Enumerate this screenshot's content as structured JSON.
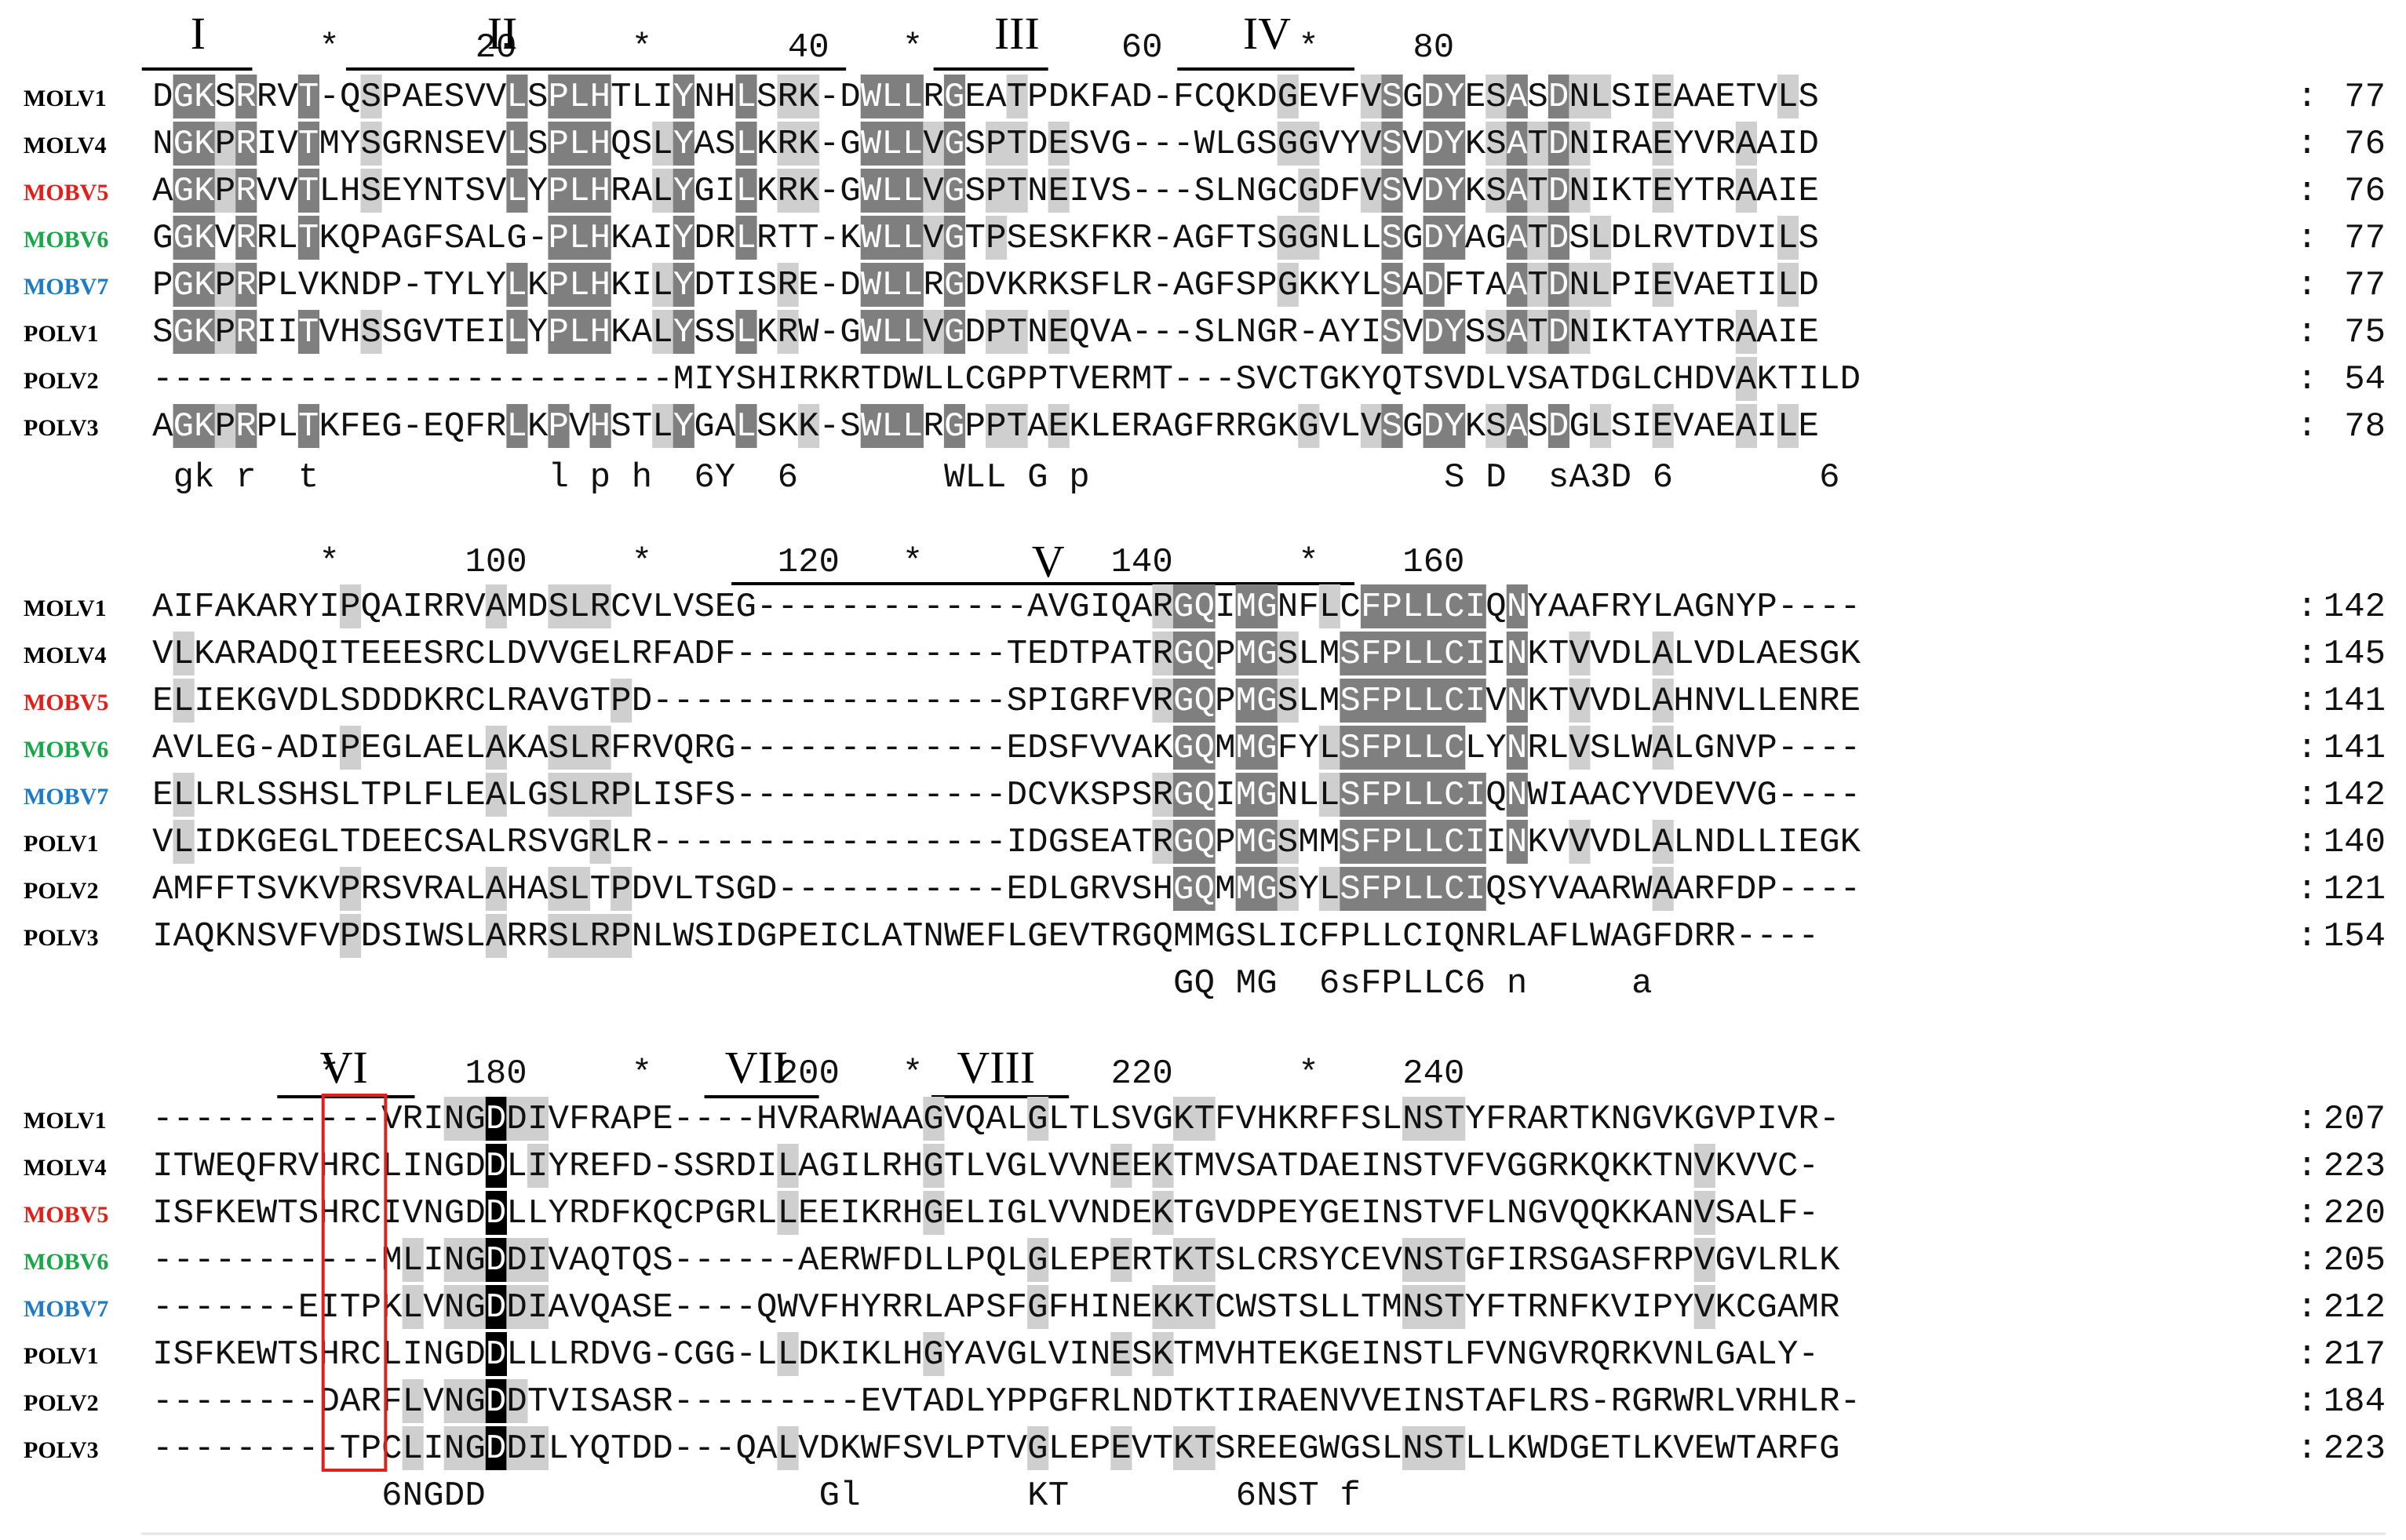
{
  "colors": {
    "text": "#111111",
    "black_bg": "#000000",
    "black_fg": "#ffffff",
    "dark_bg": "#7f7f7f",
    "dark_fg": "#ffffff",
    "light_bg": "#cfcfcf",
    "light_fg": "#111111",
    "highlight_box": "#e0201b",
    "name_colors": {
      "MOLV1": "#000000",
      "MOLV4": "#000000",
      "MOBV5": "#e0201b",
      "MOBV6": "#1aa64a",
      "MOBV7": "#1e7bc4",
      "POLV1": "#000000",
      "POLV2": "#000000",
      "POLV3": "#000000"
    }
  },
  "blocks": [
    {
      "ruler": [
        "*",
        "20",
        "*",
        "40",
        "*",
        "60",
        "*",
        "80"
      ],
      "motifs": [
        {
          "label": "I"
        },
        {
          "label": "II"
        },
        {
          "label": "III"
        },
        {
          "label": "IV"
        }
      ],
      "rows": [
        {
          "name": "MOLV1",
          "seq": "DGKSRRVT-QSPAESVVLSPLHTLIYNHLSRK-DWLLRGEATPDKFAD-FCQKDGEVFVSGDYESASDNLSIEAAETVLS",
          "count": "77"
        },
        {
          "name": "MOLV4",
          "seq": "NGKPRIVTMYSGRNSEVLSPLHQSLYASLKRK-GWLLVGSPTDESVG---WLGSGGVYVSVDYKSATDNIRAEYVRAAID",
          "count": "76"
        },
        {
          "name": "MOBV5",
          "seq": "AGKPRVVTLHSEYNTSVLYPLHRALYGILKRK-GWLLVGSPTNEIVS---SLNGCGDFVSVDYKSATDNIKTEYTRAAIE",
          "count": "76"
        },
        {
          "name": "MOBV6",
          "seq": "GGKVRRLTKQPAGFSALG-PLHKAIYDRLRTT-KWLLVGTPSESKFKR-AGFTSGGNLLSGDYAGATDSLDLRVTDVILS",
          "count": "77"
        },
        {
          "name": "MOBV7",
          "seq": "PGKPRPLVKNDP-TYLYLKPLHKILYDTISRE-DWLLRGDVKRKSFLR-AGFSPGKKYLSADFTAATDNLPIEVAETILD",
          "count": "77"
        },
        {
          "name": "POLV1",
          "seq": "SGKPRIITVHSSGVTEILYPLHKALYSSLKRW-GWLLVGDPTNEQVA---SLNGR-AYISVDYSSATDNIKTAYTRAAIE",
          "count": "75"
        },
        {
          "name": "POLV2",
          "seq": "-------------------------MIYSHIRKRTDWLLCGPPTVERMT---SVCTGKYQTSVDLVSATDGLCHDVAKTILD",
          "count": "54"
        },
        {
          "name": "POLV3",
          "seq": "AGKPRPLTKFEG-EQFRLKPVHSTLYGALSKK-SWLLRGPPTAEKLERAGFRRGKGVLVSGDYKSASDGLSIEVAEAILE",
          "count": "78"
        }
      ],
      "consensus": " gk r  t           l p h  6Y  6       WLL G p                 S D  sA3D 6       6 "
    },
    {
      "ruler": [
        "*",
        "100",
        "*",
        "120",
        "*",
        "140",
        "*",
        "160"
      ],
      "motifs": [
        {
          "label": "V"
        }
      ],
      "rows": [
        {
          "name": "MOLV1",
          "seq": "AIFAKARYIPQAIRRVAMDSLRCVLVSEG-------------AVGIQARGQIMGNFLCFPLLCIQNYAAFRYLAGNYP----",
          "count": "142"
        },
        {
          "name": "MOLV4",
          "seq": "VLKARADQITEEESRCLDVVGELRFADF-------------TEDTPATRGQPMGSLMSFPLLCIINKTVVDLALVDLAESGK",
          "count": "145"
        },
        {
          "name": "MOBV5",
          "seq": "ELIEKGVDLSDDDKRCLRAVGTPD-----------------SPIGRFVRGQPMGSLMSFPLLCIVNKTVVDLAHNVLLENRE",
          "count": "141"
        },
        {
          "name": "MOBV6",
          "seq": "AVLEG-ADIPEGLAELAKASLRFRVQRG-------------EDSFVVAKGQMMGFYLSFPLLCLYNRLVSLWALGNVP----",
          "count": "141"
        },
        {
          "name": "MOBV7",
          "seq": "ELLRLSSHSLTPLFLEALGSLRPLISFS-------------DCVKSPSRGQIMGNLLSFPLLCIQNWIAACYVDEVVG----",
          "count": "142"
        },
        {
          "name": "POLV1",
          "seq": "VLIDKGEGLTDEECSALRSVGRLR-----------------IDGSEATRGQPMGSMMSFPLLCIINKVVVDLALNDLLIEGK",
          "count": "140"
        },
        {
          "name": "POLV2",
          "seq": "AMFFTSVKVPRSVRALAHASLTPDVLTSGD-----------EDLGRVSHGQMMGSYLSFPLLCIQSYVAARWAARFDP----",
          "count": "121"
        },
        {
          "name": "POLV3",
          "seq": "IAQKNSVFVPDSIWSLARRSLRPNLWSIDGPEICLATNWEFLGEVTRGQMMGSLICFPLLCIQNRLAFLWAGFDRR----",
          "count": "154"
        }
      ],
      "consensus": "                                                 GQ MG  6sFPLLC6 n     a         "
    },
    {
      "ruler": [
        "*",
        "180",
        "*",
        "200",
        "*",
        "220",
        "*",
        "240"
      ],
      "motifs": [
        {
          "label": "VI"
        },
        {
          "label": "VII"
        },
        {
          "label": "VIII"
        }
      ],
      "rows": [
        {
          "name": "MOLV1",
          "seq": "-----------VRINGDDIVFRAPE----HVRARWAAGVQALGLTLSVGKTFVHKRFFSLNSTYFRARTKNGVKGVPIVR-",
          "count": "207"
        },
        {
          "name": "MOLV4",
          "seq": "ITWEQFRVHRCLINGDDLIYREFD-SSRDILAGILRHGTLVGLVVNEEKTMVSATDAEINSTVFVGGRKQKKTNVKVVC-",
          "count": "223"
        },
        {
          "name": "MOBV5",
          "seq": "ISFKEWTSHRCIVNGDDLLYRDFKQCPGRLLEEIKRHGELIGLVVNDEKTGVDPEYGEINSTVFLNGVQQKKANVSALF-",
          "count": "220"
        },
        {
          "name": "MOBV6",
          "seq": "-----------MLINGDDIVAQTQS------AERWFDLLPQLGLEPERTKTSLCRSYCEVNSTGFIRSGASFRPVGVLRLK",
          "count": "205"
        },
        {
          "name": "MOBV7",
          "seq": "-------EITPKLVNGDDIAVQASE----QWVFHYRRLAPSFGFHINEKKTCWSTSLLTMNSTYFTRNFKVIPYVKCGAMR",
          "count": "212"
        },
        {
          "name": "POLV1",
          "seq": "ISFKEWTSHRCLINGDDLLLRDVG-CGG-LLDKIKLHGYAVGLVINESKTMVHTEKGEINSTLFVNGVRQRKVNLGALY-",
          "count": "217"
        },
        {
          "name": "POLV2",
          "seq": "--------DARFLVNGDDTVISASR---------EVTADLYPPGFRLNDTKTIRAENVVEINSTAFLRS-RGRWRLVRHLR-",
          "count": "184"
        },
        {
          "name": "POLV3",
          "seq": "---------TPCLINGDDILYQTDD---QALVDKWFSVLPTVGLEPEVTKTSREEGWGSLNSTLLKWDGETLKVEWTARFG",
          "count": "223"
        }
      ],
      "consensus": "           6NGDD                Gl        KT        6NST f                      "
    }
  ]
}
